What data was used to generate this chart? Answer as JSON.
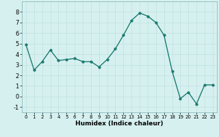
{
  "x": [
    0,
    1,
    2,
    3,
    4,
    5,
    6,
    7,
    8,
    9,
    10,
    11,
    12,
    13,
    14,
    15,
    16,
    17,
    18,
    19,
    20,
    21,
    22,
    23
  ],
  "y": [
    4.9,
    2.5,
    3.3,
    4.4,
    3.4,
    3.5,
    3.6,
    3.3,
    3.3,
    2.8,
    3.5,
    4.5,
    5.8,
    7.2,
    7.9,
    7.6,
    7.0,
    5.8,
    2.4,
    -0.2,
    0.4,
    -0.7,
    1.1,
    1.1
  ],
  "xlabel": "Humidex (Indice chaleur)",
  "ylim": [
    -1.5,
    9.0
  ],
  "xlim": [
    -0.5,
    23.5
  ],
  "yticks": [
    -1,
    0,
    1,
    2,
    3,
    4,
    5,
    6,
    7,
    8
  ],
  "xticks": [
    0,
    1,
    2,
    3,
    4,
    5,
    6,
    7,
    8,
    9,
    10,
    11,
    12,
    13,
    14,
    15,
    16,
    17,
    18,
    19,
    20,
    21,
    22,
    23
  ],
  "line_color": "#1a7a6e",
  "marker_color": "#1a7a6e",
  "bg_color": "#d6f0f0",
  "grid_color": "#c0dfdf",
  "fig_bg": "#d6f0f0"
}
